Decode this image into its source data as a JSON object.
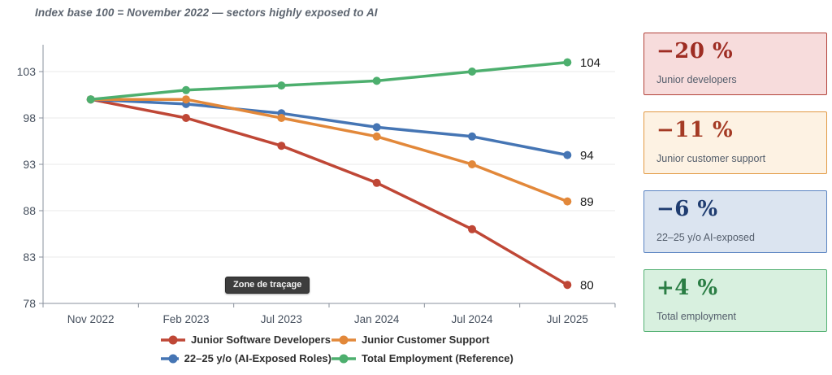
{
  "title": "Index base 100 = November 2022 — sectors highly exposed to AI",
  "tooltip": {
    "text": "Zone de traçage"
  },
  "chart_data": {
    "type": "line",
    "title": "Index base 100 = November 2022 — sectors highly exposed to AI",
    "categories": [
      "Nov 2022",
      "Feb 2023",
      "Jul 2023",
      "Jan 2024",
      "Jul 2024",
      "Jul 2025"
    ],
    "series": [
      {
        "name": "Junior Software Developers",
        "color": "#bf4736",
        "values": [
          100,
          98,
          95,
          91,
          86,
          80
        ],
        "end_label": "80"
      },
      {
        "name": "Junior Customer Support",
        "color": "#e2883a",
        "values": [
          100,
          100,
          98,
          96,
          93,
          89
        ],
        "end_label": "89"
      },
      {
        "name": "22–25 y/o (AI-Exposed Roles)",
        "color": "#4575b4",
        "values": [
          100,
          99.5,
          98.5,
          97,
          96,
          94
        ],
        "end_label": "94"
      },
      {
        "name": "Total Employment (Reference)",
        "color": "#4daf6e",
        "values": [
          100,
          101,
          101.5,
          102,
          103,
          104
        ],
        "end_label": "104"
      }
    ],
    "draw_order": [
      0,
      2,
      1,
      3
    ],
    "xlabel": "",
    "ylabel": "",
    "yticks": [
      78,
      83,
      88,
      93,
      98,
      103
    ],
    "ylim": [
      78,
      106
    ],
    "grid": "horizontal",
    "legend_position": "bottom"
  },
  "panel": {
    "cards": [
      {
        "value": "−20 %",
        "label": "Junior developers",
        "bg": "#f7dcdc",
        "border": "#b2423a",
        "color": "#9e2d23"
      },
      {
        "value": "−11 %",
        "label": "Junior customer support",
        "bg": "#fdf2e3",
        "border": "#e29a45",
        "color": "#a43a24"
      },
      {
        "value": "−6 %",
        "label": "22–25 y/o AI-exposed",
        "bg": "#dbe4f0",
        "border": "#5b84c2",
        "color": "#1f3c70"
      },
      {
        "value": "+4 %",
        "label": "Total employment",
        "bg": "#d8f0df",
        "border": "#55b174",
        "color": "#2a7d44"
      }
    ]
  }
}
